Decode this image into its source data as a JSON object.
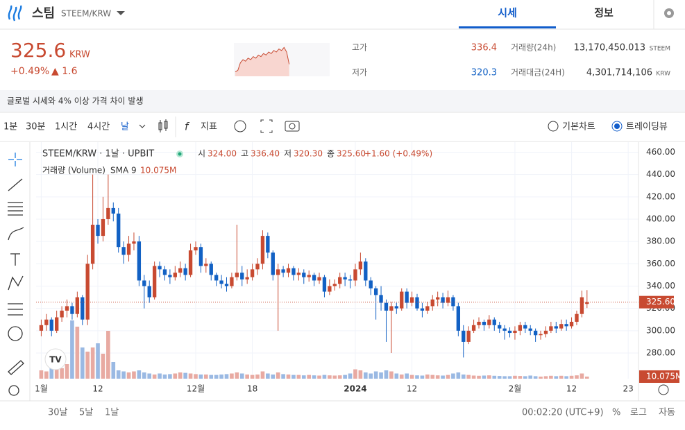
{
  "header": {
    "coin": "스팀",
    "pair": "STEEM/KRW",
    "tabs": [
      "시세",
      "정보"
    ],
    "price": "325.6",
    "price_unit": "KRW",
    "change_rate": "+0.49%",
    "change": "▲ 1.6",
    "high_label": "고가",
    "high": "336.4",
    "low_label": "저가",
    "low": "320.3",
    "volume_label": "거래량(24h)",
    "volume": "13,170,450.013",
    "volume_unit": "STEEM",
    "amount_label": "거래대금(24H)",
    "amount": "4,301,714,106",
    "amount_unit": "KRW",
    "sparkline": [
      320,
      321,
      326,
      328,
      327,
      329,
      328,
      330,
      329,
      331,
      330,
      332,
      331,
      333,
      332,
      334,
      333,
      335,
      334,
      336,
      333,
      325
    ],
    "sparkline_lim": [
      318,
      338
    ],
    "notice": "글로벌 시세와 4% 이상 가격 차이 발생",
    "intervals": [
      "1분",
      "30분",
      "1시간",
      "4시간",
      "날"
    ],
    "indicator": "지표",
    "chart_modes": [
      "기본차트",
      "트레이딩뷰"
    ]
  },
  "chart_data": {
    "type": "candlestick",
    "symbol_line": "STEEM/KRW · 1날 · UPBIT",
    "legend": [
      [
        "시",
        "324.00"
      ],
      [
        "고",
        "336.40"
      ],
      [
        "저",
        "320.30"
      ],
      [
        "종",
        "325.60"
      ]
    ],
    "legend_change": "+1.60 (+0.49%)",
    "volume_title": "거래량 (Volume)",
    "volume_sma": {
      "name": "SMA 9",
      "value": 10.075,
      "label": "10.075M"
    },
    "up_color": "#c84a31",
    "down_color": "#1261c4",
    "volume_up_color": "#e8aaa2",
    "volume_down_color": "#9ab9e3",
    "xlim": [
      -1,
      116
    ],
    "xticks": [
      {
        "value": 0,
        "label": "1월"
      },
      {
        "value": 11,
        "label": "12"
      },
      {
        "value": 30,
        "label": "12월"
      },
      {
        "value": 41,
        "label": "18"
      },
      {
        "value": 61,
        "label": "2024"
      },
      {
        "value": 72,
        "label": "12"
      },
      {
        "value": 92,
        "label": "2월"
      },
      {
        "value": 103,
        "label": "12"
      },
      {
        "value": 114,
        "label": "23"
      }
    ],
    "ylim": [
      257,
      469
    ],
    "yticks": [
      {
        "value": 280,
        "label": "280.00"
      },
      {
        "value": 300,
        "label": "300.00"
      },
      {
        "value": 320,
        "label": "320.00"
      },
      {
        "value": 340,
        "label": "340.00"
      },
      {
        "value": 360,
        "label": "360.00"
      },
      {
        "value": 380,
        "label": "380.00"
      },
      {
        "value": 400,
        "label": "400.00"
      },
      {
        "value": 420,
        "label": "420.00"
      },
      {
        "value": 440,
        "label": "440.00"
      },
      {
        "value": 460,
        "label": "460.00"
      }
    ],
    "price_tag": "325.60",
    "volume_lim": [
      0,
      300
    ],
    "open": [
      300,
      305,
      310,
      300,
      312,
      318,
      322,
      315,
      330,
      310,
      360,
      395,
      385,
      400,
      410,
      405,
      375,
      368,
      378,
      380,
      345,
      340,
      330,
      358,
      355,
      350,
      348,
      352,
      356,
      350,
      372,
      375,
      358,
      360,
      350,
      345,
      342,
      340,
      348,
      352,
      346,
      348,
      355,
      360,
      385,
      370,
      350,
      355,
      352,
      356,
      350,
      352,
      348,
      350,
      345,
      348,
      335,
      340,
      342,
      348,
      346,
      345,
      355,
      362,
      345,
      338,
      332,
      325,
      318,
      322,
      320,
      335,
      325,
      330,
      320,
      318,
      322,
      328,
      330,
      325,
      330,
      322,
      300,
      290,
      300,
      305,
      308,
      305,
      310,
      305,
      302,
      300,
      298,
      300,
      305,
      302,
      300,
      296,
      297,
      300,
      304,
      302,
      306,
      304,
      308,
      315,
      324
    ],
    "high": [
      310,
      315,
      312,
      318,
      322,
      328,
      325,
      335,
      332,
      368,
      440,
      400,
      420,
      440,
      415,
      410,
      380,
      385,
      388,
      385,
      350,
      345,
      362,
      362,
      358,
      355,
      358,
      362,
      360,
      378,
      380,
      378,
      365,
      362,
      352,
      350,
      348,
      352,
      395,
      358,
      355,
      360,
      365,
      390,
      388,
      372,
      360,
      358,
      360,
      358,
      356,
      355,
      354,
      352,
      352,
      350,
      346,
      346,
      352,
      352,
      350,
      360,
      370,
      365,
      348,
      340,
      340,
      328,
      326,
      325,
      338,
      338,
      335,
      333,
      325,
      326,
      332,
      335,
      334,
      336,
      332,
      325,
      305,
      304,
      310,
      312,
      310,
      314,
      312,
      308,
      305,
      303,
      304,
      308,
      308,
      305,
      302,
      300,
      304,
      308,
      308,
      310,
      310,
      312,
      318,
      336,
      336.4
    ],
    "low": [
      295,
      300,
      295,
      298,
      308,
      312,
      310,
      312,
      305,
      305,
      355,
      378,
      380,
      395,
      398,
      370,
      360,
      362,
      372,
      340,
      320,
      325,
      328,
      348,
      345,
      342,
      345,
      348,
      345,
      348,
      368,
      352,
      352,
      345,
      340,
      338,
      335,
      338,
      345,
      340,
      342,
      345,
      350,
      355,
      365,
      345,
      300,
      348,
      348,
      345,
      345,
      342,
      344,
      340,
      342,
      330,
      332,
      336,
      338,
      340,
      338,
      340,
      350,
      340,
      332,
      310,
      318,
      290,
      280,
      315,
      318,
      320,
      322,
      318,
      312,
      315,
      318,
      322,
      320,
      322,
      318,
      295,
      276,
      288,
      298,
      302,
      300,
      302,
      300,
      298,
      292,
      294,
      292,
      296,
      298,
      296,
      290,
      292,
      294,
      298,
      298,
      300,
      300,
      302,
      305,
      312,
      320.3
    ],
    "close": [
      305,
      310,
      300,
      312,
      318,
      322,
      315,
      330,
      310,
      360,
      395,
      385,
      400,
      410,
      405,
      375,
      368,
      378,
      380,
      345,
      340,
      330,
      358,
      355,
      350,
      348,
      352,
      356,
      350,
      372,
      375,
      358,
      360,
      350,
      345,
      342,
      340,
      348,
      352,
      346,
      348,
      355,
      360,
      385,
      370,
      350,
      355,
      352,
      356,
      350,
      352,
      348,
      350,
      345,
      348,
      335,
      340,
      342,
      348,
      346,
      345,
      355,
      362,
      345,
      338,
      332,
      325,
      318,
      322,
      320,
      335,
      325,
      330,
      320,
      318,
      322,
      328,
      330,
      325,
      330,
      322,
      300,
      290,
      300,
      305,
      308,
      305,
      310,
      305,
      302,
      300,
      298,
      300,
      305,
      302,
      300,
      296,
      297,
      300,
      304,
      302,
      306,
      304,
      308,
      315,
      330,
      325.6
    ],
    "volume": [
      40,
      35,
      60,
      45,
      50,
      70,
      280,
      250,
      150,
      130,
      150,
      170,
      120,
      230,
      80,
      40,
      35,
      30,
      35,
      40,
      30,
      25,
      20,
      25,
      20,
      22,
      25,
      30,
      28,
      25,
      22,
      20,
      20,
      18,
      18,
      20,
      22,
      25,
      30,
      25,
      20,
      18,
      20,
      35,
      25,
      20,
      30,
      22,
      20,
      18,
      18,
      16,
      18,
      16,
      15,
      18,
      16,
      15,
      16,
      18,
      25,
      45,
      40,
      30,
      25,
      35,
      30,
      40,
      35,
      25,
      20,
      25,
      18,
      16,
      15,
      20,
      18,
      16,
      15,
      18,
      25,
      30,
      20,
      18,
      15,
      14,
      15,
      16,
      14,
      13,
      12,
      12,
      14,
      13,
      12,
      15,
      12,
      10,
      12,
      14,
      12,
      14,
      12,
      14,
      16,
      25,
      10.075
    ],
    "footer_ranges": [
      "30날",
      "5날",
      "1날"
    ],
    "clock": "00:02:20 (UTC+9)",
    "scale_options": [
      "%",
      "로그",
      "자동"
    ]
  }
}
